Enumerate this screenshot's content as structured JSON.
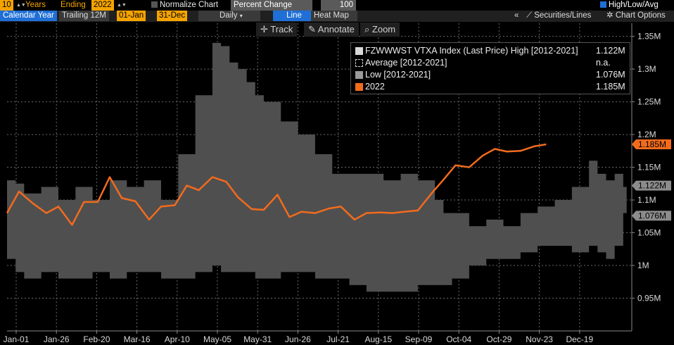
{
  "toolbar": {
    "years_value": "10",
    "years_label": "Years",
    "ending_label": "Ending",
    "ending_value": "2022",
    "normalize_label": "Normalize Chart",
    "normalize_mode": "Percent Change",
    "normalize_base": "100",
    "high_low_avg_label": "High/Low/Avg"
  },
  "toolbar2": {
    "calendar_year": "Calendar Year",
    "trailing": "Trailing 12M",
    "start_date": "01-Jan",
    "end_date": "31-Dec",
    "frequency": "Daily",
    "line_tab": "Line",
    "heatmap_tab": "Heat Map",
    "collapse_glyph": "«",
    "securities_lines": "Securities/Lines",
    "chart_options": "Chart Options"
  },
  "tools": {
    "track": "Track",
    "annotate": "Annotate",
    "zoom": "Zoom"
  },
  "legend": {
    "items": [
      {
        "name": "FZWWWST VTXA Index (Last Price) High [2012-2021]",
        "value": "1.122M"
      },
      {
        "name": "Average  [2012-2021]",
        "value": "n.a."
      },
      {
        "name": "Low  [2012-2021]",
        "value": "1.076M"
      },
      {
        "name": "2022",
        "value": "1.185M"
      }
    ]
  },
  "colors": {
    "band": "#4f4f4f",
    "line2022": "#f26b1d",
    "amber": "#f4a300",
    "grey_label": "#8c8c8c"
  },
  "chart_data": {
    "type": "area",
    "x_ticks": [
      "Jan-01",
      "Jan-26",
      "Feb-20",
      "Mar-16",
      "Apr-10",
      "May-05",
      "May-31",
      "Jun-26",
      "Jul-21",
      "Aug-15",
      "Sep-09",
      "Oct-04",
      "Oct-29",
      "Nov-23",
      "Dec-19"
    ],
    "y_ticks": [
      "0.95M",
      "1M",
      "1.05M",
      "1.1M",
      "1.15M",
      "1.2M",
      "1.25M",
      "1.3M",
      "1.35M"
    ],
    "y_tick_values": [
      0.95,
      1.0,
      1.05,
      1.1,
      1.15,
      1.2,
      1.25,
      1.3,
      1.35
    ],
    "ylim": [
      0.9,
      1.37
    ],
    "xlim": [
      0,
      365
    ],
    "grid": true,
    "legend_position": "top-right",
    "high_low_band": {
      "x": [
        0,
        5,
        10,
        20,
        30,
        40,
        50,
        60,
        70,
        80,
        90,
        100,
        110,
        120,
        125,
        130,
        135,
        140,
        145,
        150,
        160,
        170,
        180,
        190,
        200,
        210,
        220,
        230,
        240,
        250,
        255,
        260,
        270,
        280,
        290,
        300,
        310,
        320,
        330,
        340,
        345,
        350,
        355,
        360
      ],
      "high": [
        1.13,
        1.125,
        1.11,
        1.12,
        1.1,
        1.12,
        1.1,
        1.13,
        1.12,
        1.13,
        1.1,
        1.17,
        1.26,
        1.34,
        1.335,
        1.31,
        1.3,
        1.28,
        1.26,
        1.25,
        1.22,
        1.2,
        1.17,
        1.14,
        1.14,
        1.14,
        1.13,
        1.14,
        1.13,
        1.1,
        1.08,
        1.08,
        1.06,
        1.07,
        1.06,
        1.08,
        1.09,
        1.1,
        1.12,
        1.16,
        1.14,
        1.13,
        1.14,
        1.12
      ],
      "low": [
        1.01,
        0.99,
        0.98,
        0.99,
        0.98,
        0.98,
        0.99,
        0.98,
        0.99,
        0.99,
        0.98,
        0.98,
        0.99,
        1.0,
        0.99,
        0.99,
        0.99,
        0.99,
        0.98,
        0.98,
        0.99,
        0.99,
        0.98,
        0.98,
        0.97,
        0.96,
        0.96,
        0.96,
        0.97,
        0.97,
        0.97,
        0.98,
        1.0,
        1.01,
        1.01,
        1.02,
        1.03,
        1.03,
        1.02,
        1.03,
        1.02,
        1.01,
        1.03,
        1.08
      ]
    },
    "series_2022": {
      "name": "2022",
      "x": [
        0,
        7,
        15,
        23,
        30,
        38,
        45,
        53,
        60,
        67,
        75,
        83,
        90,
        98,
        105,
        112,
        120,
        128,
        135,
        143,
        150,
        158,
        165,
        172,
        180,
        188,
        195,
        203,
        210,
        218,
        225,
        232,
        240,
        248,
        255,
        262,
        270,
        278,
        285,
        292,
        300,
        308,
        315
      ],
      "values": [
        1.08,
        1.113,
        1.095,
        1.08,
        1.09,
        1.062,
        1.097,
        1.097,
        1.135,
        1.103,
        1.098,
        1.07,
        1.09,
        1.092,
        1.122,
        1.115,
        1.135,
        1.128,
        1.104,
        1.086,
        1.085,
        1.108,
        1.074,
        1.082,
        1.08,
        1.087,
        1.09,
        1.07,
        1.08,
        1.081,
        1.08,
        1.082,
        1.084,
        1.11,
        1.131,
        1.153,
        1.15,
        1.168,
        1.178,
        1.174,
        1.175,
        1.182,
        1.185
      ]
    },
    "axis_labels": [
      {
        "text": "1.185M",
        "value": 1.185,
        "color": "#f26b1d"
      },
      {
        "text": "1.122M",
        "value": 1.122,
        "color": "#8c8c8c"
      },
      {
        "text": "1.076M",
        "value": 1.076,
        "color": "#8c8c8c"
      }
    ]
  }
}
